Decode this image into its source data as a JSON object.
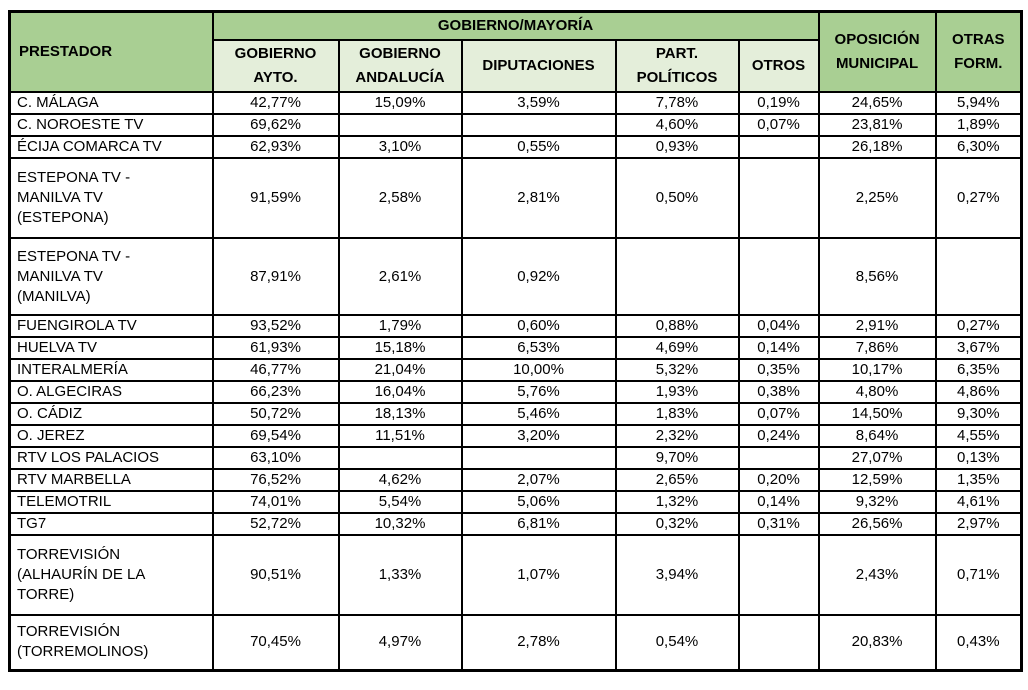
{
  "colors": {
    "header_fill": "#a9cf93",
    "subheader_fill": "#e4eeda",
    "border": "#000000",
    "cell_fill": "#ffffff",
    "text": "#000000"
  },
  "chart_data": {
    "type": "table",
    "value_format": "percent with comma decimal separator",
    "header": {
      "prestador": "PRESTADOR",
      "group": "GOBIERNO/MAYORÍA",
      "subcolumns": [
        "GOBIERNO AYTO.",
        "GOBIERNO ANDALUCÍA",
        "DIPUTACIONES",
        "PART. POLÍTICOS",
        "OTROS"
      ],
      "oposicion_municipal": "OPOSICIÓN MUNICIPAL",
      "otras_formaciones": "OTRAS FORM."
    },
    "columns": [
      "PRESTADOR",
      "GOBIERNO AYTO.",
      "GOBIERNO ANDALUCÍA",
      "DIPUTACIONES",
      "PART. POLÍTICOS",
      "OTROS",
      "OPOSICIÓN MUNICIPAL",
      "OTRAS FORM."
    ],
    "rows": [
      {
        "name": "C. MÁLAGA",
        "values": [
          "42,77%",
          "15,09%",
          "3,59%",
          "7,78%",
          "0,19%",
          "24,65%",
          "5,94%"
        ]
      },
      {
        "name": "C. NOROESTE TV",
        "values": [
          "69,62%",
          "",
          "",
          "4,60%",
          "0,07%",
          "23,81%",
          "1,89%"
        ]
      },
      {
        "name": "ÉCIJA COMARCA TV",
        "values": [
          "62,93%",
          "3,10%",
          "0,55%",
          "0,93%",
          "",
          "26,18%",
          "6,30%"
        ]
      },
      {
        "name": "ESTEPONA TV -\nMANILVA TV\n(ESTEPONA)",
        "values": [
          "91,59%",
          "2,58%",
          "2,81%",
          "0,50%",
          "",
          "2,25%",
          "0,27%"
        ]
      },
      {
        "name": "ESTEPONA TV -\nMANILVA TV\n(MANILVA)",
        "values": [
          "87,91%",
          "2,61%",
          "0,92%",
          "",
          "",
          "8,56%",
          ""
        ]
      },
      {
        "name": "FUENGIROLA TV",
        "values": [
          "93,52%",
          "1,79%",
          "0,60%",
          "0,88%",
          "0,04%",
          "2,91%",
          "0,27%"
        ]
      },
      {
        "name": "HUELVA TV",
        "values": [
          "61,93%",
          "15,18%",
          "6,53%",
          "4,69%",
          "0,14%",
          "7,86%",
          "3,67%"
        ]
      },
      {
        "name": "INTERALMERÍA",
        "values": [
          "46,77%",
          "21,04%",
          "10,00%",
          "5,32%",
          "0,35%",
          "10,17%",
          "6,35%"
        ]
      },
      {
        "name": "O. ALGECIRAS",
        "values": [
          "66,23%",
          "16,04%",
          "5,76%",
          "1,93%",
          "0,38%",
          "4,80%",
          "4,86%"
        ]
      },
      {
        "name": "O. CÁDIZ",
        "values": [
          "50,72%",
          "18,13%",
          "5,46%",
          "1,83%",
          "0,07%",
          "14,50%",
          "9,30%"
        ]
      },
      {
        "name": "O. JEREZ",
        "values": [
          "69,54%",
          "11,51%",
          "3,20%",
          "2,32%",
          "0,24%",
          "8,64%",
          "4,55%"
        ]
      },
      {
        "name": "RTV LOS PALACIOS",
        "values": [
          "63,10%",
          "",
          "",
          "9,70%",
          "",
          "27,07%",
          "0,13%"
        ]
      },
      {
        "name": "RTV MARBELLA",
        "values": [
          "76,52%",
          "4,62%",
          "2,07%",
          "2,65%",
          "0,20%",
          "12,59%",
          "1,35%"
        ]
      },
      {
        "name": "TELEMOTRIL",
        "values": [
          "74,01%",
          "5,54%",
          "5,06%",
          "1,32%",
          "0,14%",
          "9,32%",
          "4,61%"
        ]
      },
      {
        "name": "TG7",
        "values": [
          "52,72%",
          "10,32%",
          "6,81%",
          "0,32%",
          "0,31%",
          "26,56%",
          "2,97%"
        ]
      },
      {
        "name": "TORREVISIÓN\n(ALHAURÍN DE LA\nTORRE)",
        "values": [
          "90,51%",
          "1,33%",
          "1,07%",
          "3,94%",
          "",
          "2,43%",
          "0,71%"
        ]
      },
      {
        "name": "TORREVISIÓN\n(TORREMOLINOS)",
        "values": [
          "70,45%",
          "4,97%",
          "2,78%",
          "0,54%",
          "",
          "20,83%",
          "0,43%"
        ]
      }
    ]
  }
}
